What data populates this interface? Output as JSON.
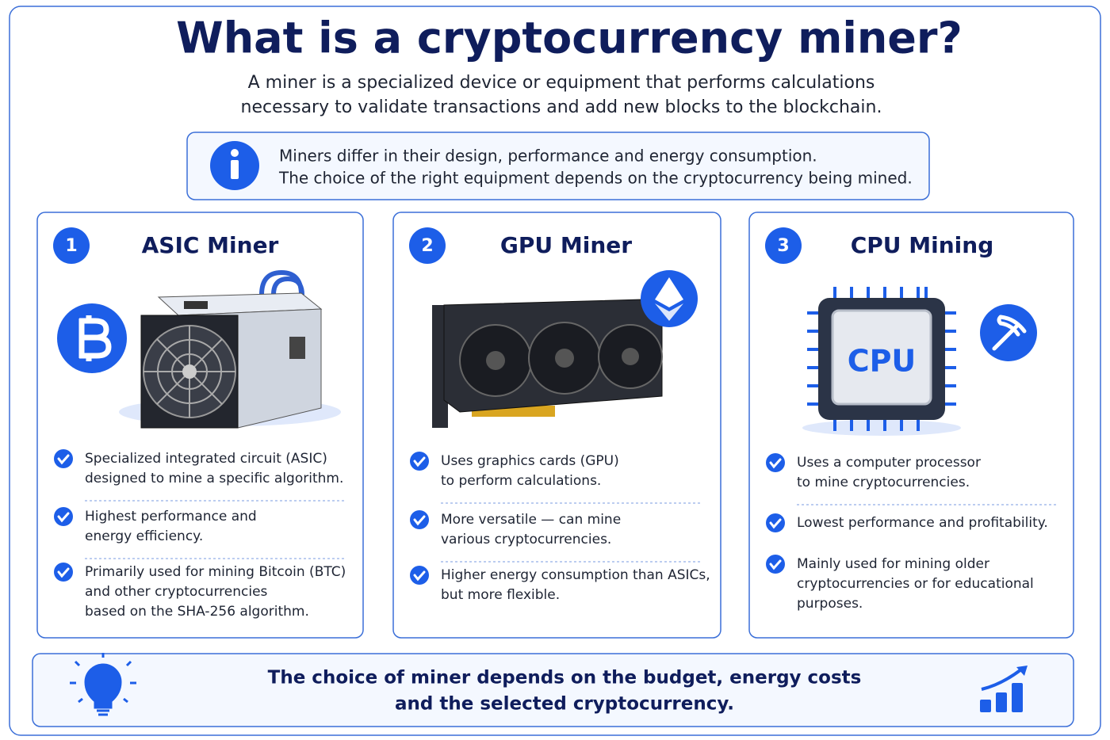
{
  "header": {
    "title": "What is a cryptocurrency miner?",
    "subtitle": [
      "A miner is a specialized device or equipment that performs calculations",
      "necessary to validate transactions and add new blocks to the blockchain."
    ]
  },
  "info": [
    "Miners differ in their design, performance and energy consumption.",
    "The choice of the right equipment depends on the cryptocurrency being mined."
  ],
  "cards": [
    {
      "number": 1,
      "title": "ASIC Miner",
      "bullets": [
        [
          "Specialized integrated circuit (ASIC)",
          "designed to mine a specific algorithm."
        ],
        [
          "Highest performance and",
          "energy efficiency."
        ],
        [
          "Primarily used for mining Bitcoin (BTC)",
          "and other cryptocurrencies",
          "based on the SHA-256 algorithm."
        ]
      ]
    },
    {
      "number": 2,
      "title": "GPU Miner",
      "bullets": [
        [
          "Uses graphics cards (GPU)",
          "to perform calculations."
        ],
        [
          "More versatile — can mine",
          "various cryptocurrencies."
        ],
        [
          "Higher energy consumption than ASICs,",
          "but more flexible."
        ]
      ]
    },
    {
      "number": 3,
      "title": "CPU Mining",
      "chip_label": "CPU",
      "bullets": [
        [
          "Uses a computer processor",
          "to mine cryptocurrencies."
        ],
        [
          "Lowest performance and profitability."
        ],
        [
          "Mainly used for mining older",
          "cryptocurrencies or for educational",
          "purposes."
        ]
      ]
    }
  ],
  "footer": [
    "The choice of miner depends on the budget, energy costs",
    "and the selected cryptocurrency."
  ]
}
